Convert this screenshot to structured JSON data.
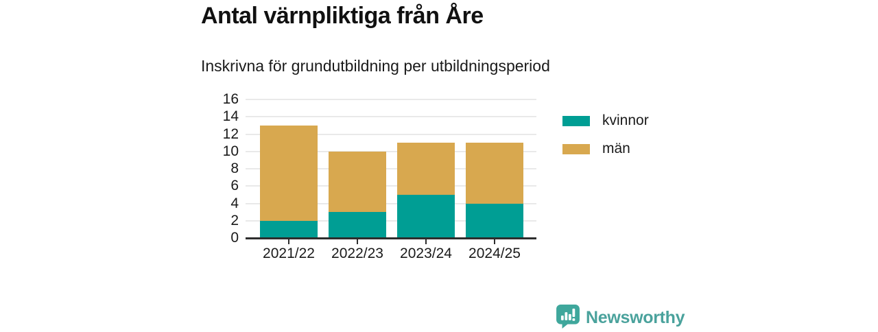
{
  "header": {
    "title": "Antal värnpliktiga från Åre",
    "subtitle": "Inskrivna för grundutbildning per utbildningsperiod"
  },
  "chart_data": {
    "type": "bar",
    "stacked": true,
    "title": "Antal värnpliktiga från Åre",
    "subtitle": "Inskrivna för grundutbildning per utbildningsperiod",
    "categories": [
      "2021/22",
      "2022/23",
      "2023/24",
      "2024/25"
    ],
    "series": [
      {
        "name": "kvinnor",
        "color": "#009e94",
        "values": [
          2,
          3,
          5,
          4
        ]
      },
      {
        "name": "män",
        "color": "#d8a84f",
        "values": [
          11,
          7,
          6,
          7
        ]
      }
    ],
    "totals": [
      13,
      10,
      11,
      11
    ],
    "xlabel": "",
    "ylabel": "",
    "ylim": [
      0,
      16
    ],
    "ytick_step": 2,
    "yticks": [
      0,
      2,
      4,
      6,
      8,
      10,
      12,
      14,
      16
    ],
    "grid": true,
    "legend_position": "right"
  },
  "branding": {
    "logo_text": "Newsworthy",
    "logo_icon": "bar-chart-speech-bubble-icon",
    "logo_icon_color": "#3fa79c",
    "logo_text_color": "#4aa29c"
  }
}
